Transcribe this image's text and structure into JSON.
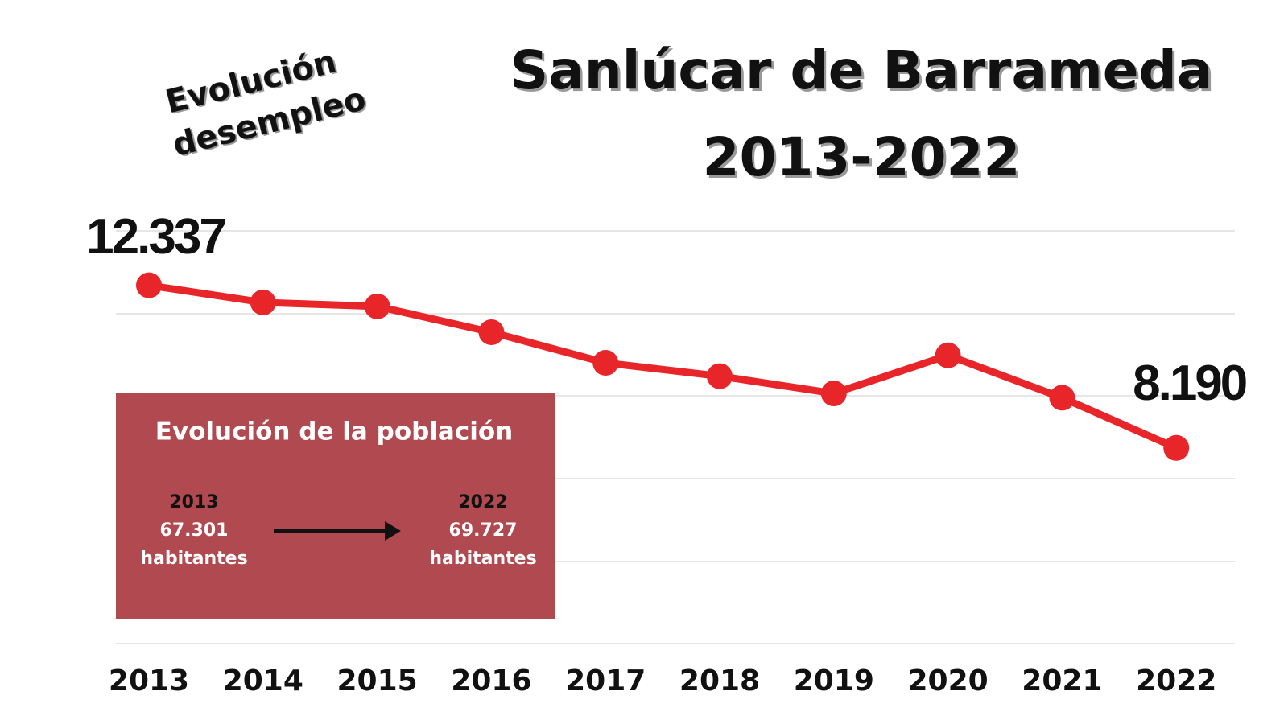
{
  "chart_data": {
    "type": "line",
    "title": "Sanlúcar de Barrameda",
    "subtitle": "2013-2022",
    "annotation": [
      "Evolución",
      "desempleo"
    ],
    "categories": [
      "2013",
      "2014",
      "2015",
      "2016",
      "2017",
      "2018",
      "2019",
      "2020",
      "2021",
      "2022"
    ],
    "values": [
      12337,
      11900,
      11800,
      11140,
      10360,
      10020,
      9580,
      10550,
      9470,
      8190
    ],
    "value_labels": [
      "12.337",
      null,
      null,
      null,
      null,
      null,
      null,
      null,
      null,
      "8.190"
    ],
    "color": "#e8262a",
    "ylim": [
      3200,
      13725
    ],
    "grid": true
  },
  "population_box": {
    "title": "Evolución de la población",
    "from": {
      "year": "2013",
      "value": "67.301",
      "unit": "habitantes"
    },
    "to": {
      "year": "2022",
      "value": "69.727",
      "unit": "habitantes"
    }
  }
}
